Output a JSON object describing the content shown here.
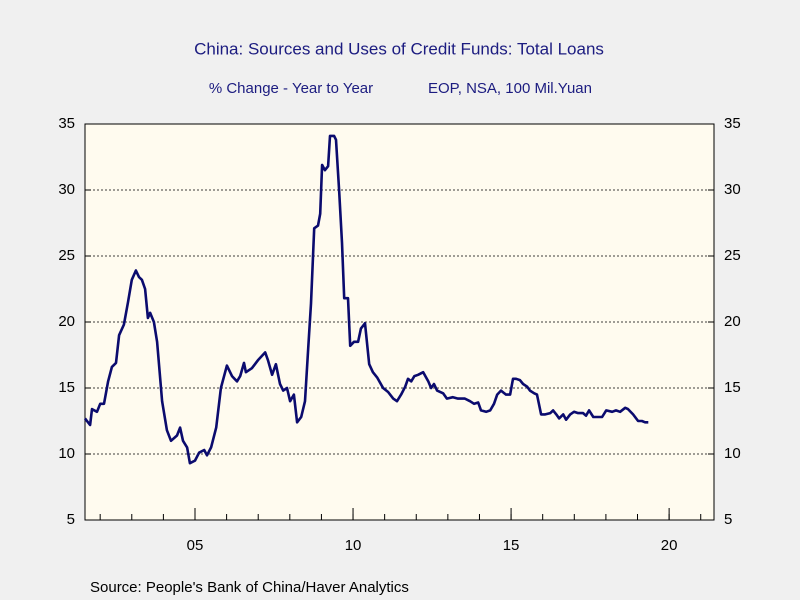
{
  "chart_data": {
    "type": "line",
    "title": "China: Sources and Uses of Credit Funds: Total Loans",
    "subtitle": "% Change - Year to Year",
    "units": "EOP, NSA, 100 Mil.Yuan",
    "source": "Source:  People's Bank of China/Haver Analytics",
    "x": [
      2001.52,
      2001.68,
      2001.74,
      2001.9,
      2002.0,
      2002.12,
      2002.25,
      2002.37,
      2002.5,
      2002.6,
      2002.75,
      2002.88,
      2003.0,
      2003.13,
      2003.23,
      2003.32,
      2003.42,
      2003.51,
      2003.58,
      2003.7,
      2003.8,
      2003.96,
      2004.11,
      2004.24,
      2004.43,
      2004.53,
      2004.62,
      2004.75,
      2004.84,
      2005.0,
      2005.13,
      2005.29,
      2005.38,
      2005.51,
      2005.67,
      2005.82,
      2006.01,
      2006.17,
      2006.33,
      2006.43,
      2006.55,
      2006.61,
      2006.8,
      2006.99,
      2007.22,
      2007.31,
      2007.44,
      2007.56,
      2007.69,
      2007.79,
      2007.91,
      2008.01,
      2008.13,
      2008.23,
      2008.36,
      2008.48,
      2008.58,
      2008.67,
      2008.77,
      2008.89,
      2008.96,
      2009.02,
      2009.11,
      2009.21,
      2009.27,
      2009.4,
      2009.46,
      2009.56,
      2009.65,
      2009.72,
      2009.84,
      2009.91,
      2010.03,
      2010.16,
      2010.25,
      2010.38,
      2010.51,
      2010.63,
      2010.76,
      2010.95,
      2011.11,
      2011.27,
      2011.39,
      2011.52,
      2011.65,
      2011.74,
      2011.84,
      2011.94,
      2012.06,
      2012.22,
      2012.38,
      2012.47,
      2012.56,
      2012.66,
      2012.85,
      2012.97,
      2013.16,
      2013.32,
      2013.54,
      2013.7,
      2013.83,
      2013.96,
      2014.05,
      2014.21,
      2014.34,
      2014.46,
      2014.56,
      2014.68,
      2014.84,
      2014.97,
      2015.06,
      2015.16,
      2015.28,
      2015.38,
      2015.51,
      2015.6,
      2015.73,
      2015.82,
      2015.95,
      2016.08,
      2016.24,
      2016.33,
      2016.43,
      2016.52,
      2016.65,
      2016.74,
      2016.87,
      2016.99,
      2017.12,
      2017.28,
      2017.37,
      2017.47,
      2017.6,
      2017.75,
      2017.88,
      2018.01,
      2018.2,
      2018.32,
      2018.45,
      2018.61,
      2018.7,
      2018.86,
      2019.02,
      2019.14,
      2019.24,
      2019.34
    ],
    "series": [
      {
        "name": "Total Loans",
        "color": "#0b0b6e",
        "values": [
          12.7,
          12.2,
          13.4,
          13.2,
          13.8,
          13.8,
          15.5,
          16.6,
          16.9,
          19.0,
          19.8,
          21.5,
          23.2,
          23.9,
          23.4,
          23.2,
          22.5,
          20.3,
          20.7,
          20.0,
          18.5,
          14.0,
          11.8,
          11.0,
          11.4,
          12.0,
          11.0,
          10.5,
          9.3,
          9.5,
          10.1,
          10.3,
          9.9,
          10.5,
          12.0,
          15.0,
          16.7,
          15.9,
          15.5,
          15.9,
          16.9,
          16.2,
          16.5,
          17.1,
          17.7,
          17.1,
          16.0,
          16.8,
          15.3,
          14.8,
          15.0,
          14.0,
          14.5,
          12.4,
          12.8,
          14.0,
          18.0,
          21.4,
          27.1,
          27.3,
          28.2,
          31.9,
          31.5,
          31.8,
          34.1,
          34.1,
          33.8,
          30.0,
          26.0,
          21.8,
          21.8,
          18.2,
          18.5,
          18.5,
          19.5,
          19.9,
          16.8,
          16.2,
          15.8,
          15.0,
          14.7,
          14.2,
          14.0,
          14.5,
          15.1,
          15.7,
          15.5,
          15.9,
          16.0,
          16.2,
          15.5,
          15.0,
          15.3,
          14.8,
          14.6,
          14.2,
          14.3,
          14.2,
          14.2,
          14.0,
          13.8,
          13.9,
          13.3,
          13.2,
          13.3,
          13.8,
          14.5,
          14.8,
          14.5,
          14.5,
          15.7,
          15.7,
          15.6,
          15.3,
          15.1,
          14.8,
          14.6,
          14.5,
          13.0,
          13.0,
          13.1,
          13.3,
          13.0,
          12.7,
          13.0,
          12.6,
          13.0,
          13.2,
          13.1,
          13.1,
          12.9,
          13.3,
          12.8,
          12.8,
          12.8,
          13.3,
          13.2,
          13.3,
          13.2,
          13.5,
          13.4,
          13.0,
          12.5,
          12.5,
          12.4,
          12.4
        ]
      }
    ],
    "xlim": [
      2001.52,
      2021.42
    ],
    "xticks": [
      {
        "value": 2005,
        "label": "05"
      },
      {
        "value": 2010,
        "label": "10"
      },
      {
        "value": 2015,
        "label": "15"
      },
      {
        "value": 2020,
        "label": "20"
      }
    ],
    "ylim": [
      5,
      35
    ],
    "yticks": [
      5,
      10,
      15,
      20,
      25,
      30,
      35
    ],
    "y2lim": [
      5,
      35
    ],
    "y2ticks": [
      5,
      10,
      15,
      20,
      25,
      30,
      35
    ],
    "grid": true
  }
}
